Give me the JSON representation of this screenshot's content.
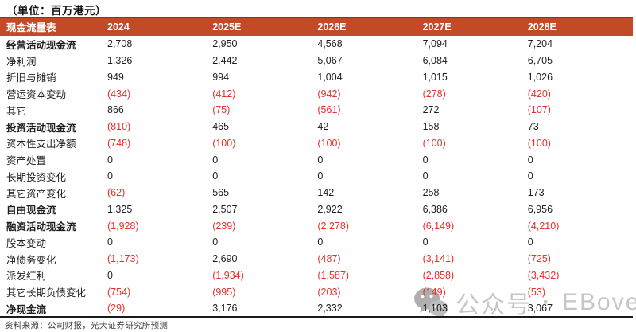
{
  "unit_label": "（单位：百万港元）",
  "table": {
    "columns": [
      "现金流量表",
      "2024",
      "2025E",
      "2026E",
      "2027E",
      "2028E"
    ],
    "rows": [
      {
        "label": "经营活动现金流",
        "bold": true,
        "values": [
          "2,708",
          "2,950",
          "4,568",
          "7,094",
          "7,204"
        ]
      },
      {
        "label": "净利润",
        "bold": false,
        "values": [
          "1,326",
          "2,442",
          "5,067",
          "6,084",
          "6,705"
        ]
      },
      {
        "label": "折旧与摊销",
        "bold": false,
        "values": [
          "949",
          "994",
          "1,004",
          "1,015",
          "1,026"
        ]
      },
      {
        "label": "营运资本变动",
        "bold": false,
        "values": [
          "(434)",
          "(412)",
          "(942)",
          "(278)",
          "(420)"
        ]
      },
      {
        "label": "其它",
        "bold": false,
        "values": [
          "866",
          "(75)",
          "(561)",
          "272",
          "(107)"
        ]
      },
      {
        "label": "投资活动现金流",
        "bold": true,
        "values": [
          "(810)",
          "465",
          "42",
          "158",
          "73"
        ]
      },
      {
        "label": "资本性支出净额",
        "bold": false,
        "values": [
          "(748)",
          "(100)",
          "(100)",
          "(100)",
          "(100)"
        ]
      },
      {
        "label": "资产处置",
        "bold": false,
        "values": [
          "0",
          "0",
          "0",
          "0",
          "0"
        ]
      },
      {
        "label": "长期投资变化",
        "bold": false,
        "values": [
          "0",
          "0",
          "0",
          "0",
          "0"
        ]
      },
      {
        "label": "其它资产变化",
        "bold": false,
        "values": [
          "(62)",
          "565",
          "142",
          "258",
          "173"
        ]
      },
      {
        "label": "自由现金流",
        "bold": true,
        "values": [
          "1,325",
          "2,507",
          "2,922",
          "6,386",
          "6,956"
        ]
      },
      {
        "label": "融资活动现金流",
        "bold": true,
        "values": [
          "(1,928)",
          "(239)",
          "(2,278)",
          "(6,149)",
          "(4,210)"
        ]
      },
      {
        "label": "股本变动",
        "bold": false,
        "values": [
          "0",
          "0",
          "0",
          "0",
          "0"
        ]
      },
      {
        "label": "净债务变化",
        "bold": false,
        "values": [
          "(1,173)",
          "2,690",
          "(487)",
          "(3,141)",
          "(725)"
        ]
      },
      {
        "label": "派发红利",
        "bold": false,
        "values": [
          "0",
          "(1,934)",
          "(1,587)",
          "(2,858)",
          "(3,432)"
        ]
      },
      {
        "label": "其它长期负债变化",
        "bold": false,
        "values": [
          "(754)",
          "(995)",
          "(203)",
          "(149)",
          "(53)"
        ]
      },
      {
        "label": "净现金流",
        "bold": true,
        "values": [
          "(29)",
          "3,176",
          "2,332",
          "1,103",
          "3,067"
        ]
      }
    ]
  },
  "footer": {
    "source_note": "资料来源：公司财报，光大证券研究所预测"
  },
  "watermark": {
    "icon": "wechat-icon",
    "label": "公众号",
    "separator": "·",
    "handle": "EBoversea"
  },
  "colors": {
    "header_bg": "#C34A27",
    "header_text": "#FFFFFF",
    "negative": "#E7312B",
    "text": "#1F1F1F",
    "watermark": "#C6C6C6"
  }
}
